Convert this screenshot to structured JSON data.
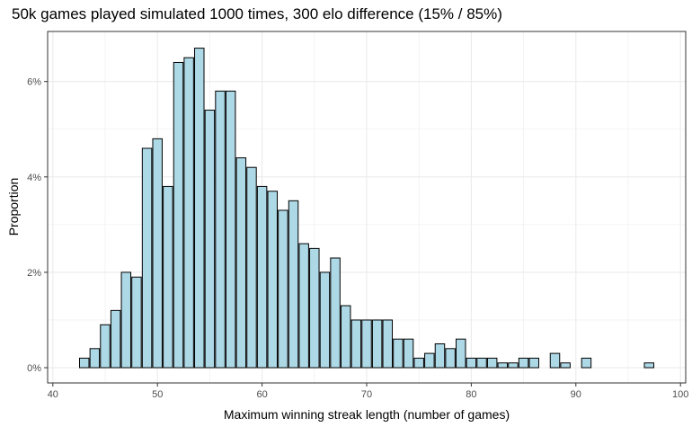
{
  "chart_data": {
    "type": "bar",
    "title": "50k games played simulated 1000 times, 300 elo difference (15% / 85%)",
    "xlabel": "Maximum winning streak length (number of games)",
    "ylabel": "Proportion",
    "xlim": [
      39.5,
      100.5
    ],
    "ylim": [
      -0.0032,
      0.0705
    ],
    "x_ticks": [
      40,
      50,
      60,
      70,
      80,
      90,
      100
    ],
    "x_tick_labels": [
      "40",
      "50",
      "60",
      "70",
      "80",
      "90",
      "100"
    ],
    "y_ticks": [
      0,
      0.02,
      0.04,
      0.06
    ],
    "y_tick_labels": [
      "0%",
      "2%",
      "4%",
      "6%"
    ],
    "grid": true,
    "bar_fill": "#add8e6",
    "bar_stroke": "#000000",
    "grid_color": "#ebebeb",
    "x": [
      43,
      44,
      45,
      46,
      47,
      48,
      49,
      50,
      51,
      52,
      53,
      54,
      55,
      56,
      57,
      58,
      59,
      60,
      61,
      62,
      63,
      64,
      65,
      66,
      67,
      68,
      69,
      70,
      71,
      72,
      73,
      74,
      75,
      76,
      77,
      78,
      79,
      80,
      81,
      82,
      83,
      84,
      85,
      86,
      88,
      89,
      91,
      97
    ],
    "values": [
      0.002,
      0.004,
      0.009,
      0.012,
      0.02,
      0.019,
      0.046,
      0.048,
      0.038,
      0.064,
      0.065,
      0.067,
      0.054,
      0.058,
      0.058,
      0.044,
      0.042,
      0.038,
      0.037,
      0.033,
      0.035,
      0.026,
      0.025,
      0.02,
      0.023,
      0.013,
      0.01,
      0.01,
      0.01,
      0.01,
      0.006,
      0.006,
      0.002,
      0.003,
      0.005,
      0.004,
      0.006,
      0.002,
      0.002,
      0.002,
      0.001,
      0.001,
      0.002,
      0.002,
      0.003,
      0.001,
      0.002,
      0.001
    ]
  }
}
